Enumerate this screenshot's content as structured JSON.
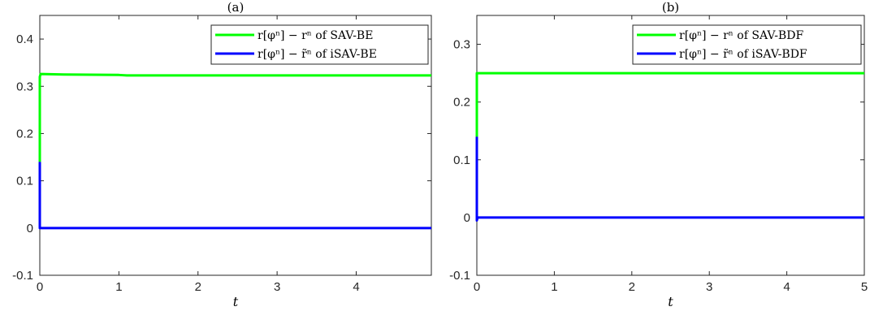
{
  "chart_data": [
    {
      "type": "line",
      "title": "(a)",
      "xlabel": "t",
      "ylabel": "",
      "xlim": [
        0,
        4.95
      ],
      "ylim": [
        -0.1,
        0.45
      ],
      "xticks": [
        "0",
        "1",
        "2",
        "3",
        "4"
      ],
      "yticks": [
        "-0.1",
        "0",
        "0.1",
        "0.2",
        "0.3",
        "0.4"
      ],
      "legend_position": "top-right",
      "series": [
        {
          "name": "r[φⁿ] − rⁿ of SAV-BE",
          "color": "#00ff00",
          "x": [
            0,
            0,
            0.01,
            0.3,
            1.0,
            1.1,
            4.95
          ],
          "y": [
            0.14,
            0.32,
            0.326,
            0.325,
            0.324,
            0.323,
            0.323
          ]
        },
        {
          "name": "r[φⁿ] − r̃ⁿ of iSAV-BE",
          "color": "#0000ff",
          "x": [
            0,
            0,
            0.01,
            4.95
          ],
          "y": [
            0.14,
            0.0,
            0.0,
            0.0
          ]
        }
      ]
    },
    {
      "type": "line",
      "title": "(b)",
      "xlabel": "t",
      "ylabel": "",
      "xlim": [
        0,
        5
      ],
      "ylim": [
        -0.1,
        0.35
      ],
      "xticks": [
        "0",
        "1",
        "2",
        "3",
        "4",
        "5"
      ],
      "yticks": [
        "-0.1",
        "0",
        "0.1",
        "0.2",
        "0.3"
      ],
      "legend_position": "top-right",
      "series": [
        {
          "name": "r[φⁿ] − rⁿ of SAV-BDF",
          "color": "#00ff00",
          "x": [
            0,
            0,
            0.02,
            5
          ],
          "y": [
            0.14,
            0.25,
            0.25,
            0.25
          ]
        },
        {
          "name": "r[φⁿ] − r̃ⁿ of iSAV-BDF",
          "color": "#0000ff",
          "x": [
            0,
            0,
            0.01,
            0.02,
            5
          ],
          "y": [
            0.14,
            -0.005,
            0.0,
            0.0,
            0.0
          ]
        }
      ]
    }
  ]
}
